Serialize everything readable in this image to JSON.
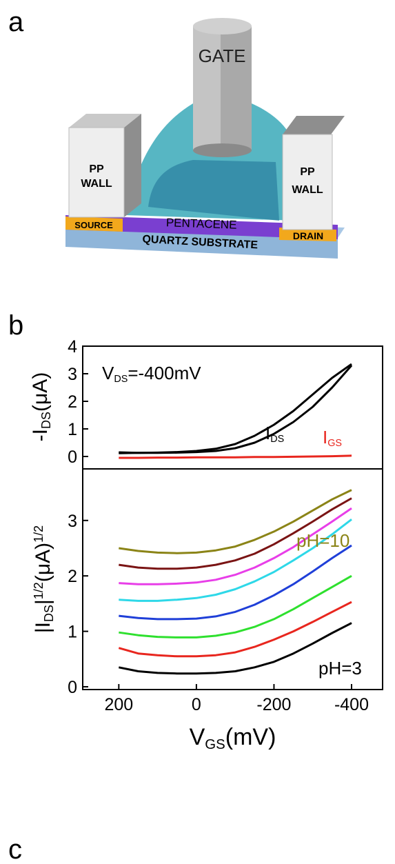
{
  "panel_labels": [
    "a",
    "b",
    "c"
  ],
  "diagram": {
    "gate": "GATE",
    "left_wall": [
      "PP",
      "WALL"
    ],
    "right_wall": [
      "PP",
      "WALL"
    ],
    "pentacene": "PENTACENE",
    "source": "SOURCE",
    "drain": "DRAIN",
    "substrate": "QUARTZ SUBSTRATE"
  },
  "chart_data": [
    {
      "type": "line",
      "ylabel": [
        {
          "t": "-I"
        },
        {
          "sub": "DS"
        },
        {
          "t": "(μA)"
        }
      ],
      "annotations": [
        {
          "parts": [
            {
              "t": "V"
            },
            {
              "sub": "DS"
            },
            {
              "t": "=-400mV"
            }
          ],
          "color": "#000000"
        },
        {
          "parts": [
            {
              "t": "I"
            },
            {
              "sub": "DS"
            }
          ],
          "color": "#000000"
        },
        {
          "parts": [
            {
              "t": "I"
            },
            {
              "sub": "GS"
            }
          ],
          "color": "#e8261e"
        }
      ],
      "x": [
        200,
        150,
        100,
        50,
        0,
        -50,
        -100,
        -150,
        -200,
        -250,
        -300,
        -350,
        -400
      ],
      "xlim": [
        293,
        -480
      ],
      "ylim": [
        -0.45,
        4
      ],
      "yticks": [
        0,
        1,
        2,
        3,
        4
      ],
      "series": [
        {
          "color": "#000000",
          "values": [
            0.12,
            0.13,
            0.14,
            0.16,
            0.2,
            0.28,
            0.45,
            0.75,
            1.15,
            1.65,
            2.25,
            2.85,
            3.35
          ]
        },
        {
          "color": "#000000",
          "values": [
            0.15,
            0.13,
            0.13,
            0.14,
            0.16,
            0.2,
            0.3,
            0.5,
            0.82,
            1.25,
            1.8,
            2.5,
            3.3
          ]
        },
        {
          "color": "#e8261e",
          "values": [
            -0.05,
            -0.05,
            -0.04,
            -0.04,
            -0.03,
            -0.03,
            -0.03,
            -0.02,
            -0.02,
            -0.01,
            0,
            0.01,
            0.03
          ]
        }
      ]
    },
    {
      "type": "line",
      "ylabel": [
        {
          "t": "|I"
        },
        {
          "sub": "DS"
        },
        {
          "t": "|"
        },
        {
          "sup": "1/2"
        },
        {
          "t": "(μA)"
        },
        {
          "sup": "1/2"
        }
      ],
      "xlabel": [
        {
          "t": "V"
        },
        {
          "sub": "GS"
        },
        {
          "t": "(mV)"
        }
      ],
      "annotations": [
        {
          "parts": [
            {
              "t": "pH=10"
            }
          ],
          "color": "#8b8417"
        },
        {
          "parts": [
            {
              "t": "pH=3"
            }
          ],
          "color": "#000000"
        }
      ],
      "x": [
        200,
        150,
        100,
        50,
        0,
        -50,
        -100,
        -150,
        -200,
        -250,
        -300,
        -350,
        -400
      ],
      "xlim": [
        293,
        -480
      ],
      "xticks": [
        200,
        0,
        -200,
        -400
      ],
      "ylim": [
        -0.05,
        3.93
      ],
      "yticks": [
        0,
        1,
        2,
        3
      ],
      "series": [
        {
          "color": "#000000",
          "values": [
            0.35,
            0.28,
            0.25,
            0.24,
            0.24,
            0.25,
            0.28,
            0.35,
            0.45,
            0.6,
            0.78,
            0.97,
            1.15
          ]
        },
        {
          "color": "#e8261e",
          "values": [
            0.7,
            0.6,
            0.57,
            0.55,
            0.55,
            0.57,
            0.62,
            0.72,
            0.85,
            1.0,
            1.17,
            1.35,
            1.53
          ]
        },
        {
          "color": "#2ee02e",
          "values": [
            0.98,
            0.93,
            0.9,
            0.89,
            0.89,
            0.92,
            0.98,
            1.08,
            1.22,
            1.4,
            1.6,
            1.8,
            2.0
          ]
        },
        {
          "color": "#1f3fd8",
          "values": [
            1.28,
            1.24,
            1.22,
            1.22,
            1.23,
            1.27,
            1.35,
            1.48,
            1.65,
            1.85,
            2.08,
            2.32,
            2.55
          ]
        },
        {
          "color": "#2ed8e8",
          "values": [
            1.57,
            1.55,
            1.55,
            1.57,
            1.6,
            1.66,
            1.76,
            1.9,
            2.07,
            2.28,
            2.5,
            2.75,
            3.02
          ]
        },
        {
          "color": "#e83ee8",
          "values": [
            1.87,
            1.85,
            1.85,
            1.86,
            1.88,
            1.93,
            2.02,
            2.15,
            2.32,
            2.52,
            2.75,
            2.98,
            3.22
          ]
        },
        {
          "color": "#7a1414",
          "values": [
            2.2,
            2.15,
            2.13,
            2.13,
            2.15,
            2.2,
            2.28,
            2.4,
            2.57,
            2.77,
            2.98,
            3.2,
            3.4
          ]
        },
        {
          "color": "#8b8417",
          "values": [
            2.5,
            2.45,
            2.42,
            2.41,
            2.42,
            2.46,
            2.53,
            2.65,
            2.8,
            2.98,
            3.18,
            3.38,
            3.55
          ]
        }
      ]
    }
  ]
}
